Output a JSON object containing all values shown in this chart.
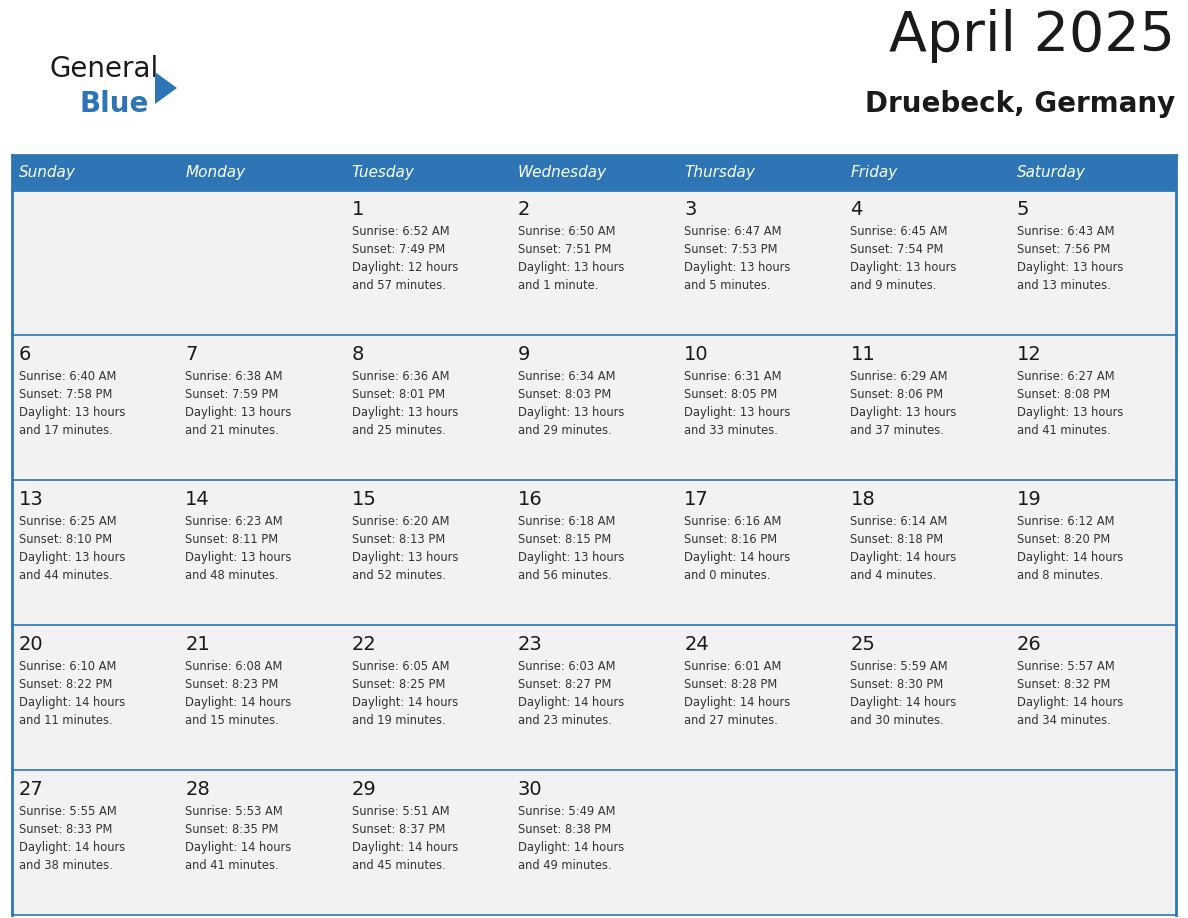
{
  "title": "April 2025",
  "subtitle": "Druebeck, Germany",
  "header_bg_color": "#2E75B6",
  "header_text_color": "#FFFFFF",
  "cell_bg_color": "#F2F2F2",
  "row_separator_color": "#2E75B6",
  "title_color": "#1a1a1a",
  "subtitle_color": "#1a1a1a",
  "text_color": "#333333",
  "days_of_week": [
    "Sunday",
    "Monday",
    "Tuesday",
    "Wednesday",
    "Thursday",
    "Friday",
    "Saturday"
  ],
  "weeks": [
    [
      {
        "day": null,
        "info": null
      },
      {
        "day": null,
        "info": null
      },
      {
        "day": 1,
        "info": "Sunrise: 6:52 AM\nSunset: 7:49 PM\nDaylight: 12 hours\nand 57 minutes."
      },
      {
        "day": 2,
        "info": "Sunrise: 6:50 AM\nSunset: 7:51 PM\nDaylight: 13 hours\nand 1 minute."
      },
      {
        "day": 3,
        "info": "Sunrise: 6:47 AM\nSunset: 7:53 PM\nDaylight: 13 hours\nand 5 minutes."
      },
      {
        "day": 4,
        "info": "Sunrise: 6:45 AM\nSunset: 7:54 PM\nDaylight: 13 hours\nand 9 minutes."
      },
      {
        "day": 5,
        "info": "Sunrise: 6:43 AM\nSunset: 7:56 PM\nDaylight: 13 hours\nand 13 minutes."
      }
    ],
    [
      {
        "day": 6,
        "info": "Sunrise: 6:40 AM\nSunset: 7:58 PM\nDaylight: 13 hours\nand 17 minutes."
      },
      {
        "day": 7,
        "info": "Sunrise: 6:38 AM\nSunset: 7:59 PM\nDaylight: 13 hours\nand 21 minutes."
      },
      {
        "day": 8,
        "info": "Sunrise: 6:36 AM\nSunset: 8:01 PM\nDaylight: 13 hours\nand 25 minutes."
      },
      {
        "day": 9,
        "info": "Sunrise: 6:34 AM\nSunset: 8:03 PM\nDaylight: 13 hours\nand 29 minutes."
      },
      {
        "day": 10,
        "info": "Sunrise: 6:31 AM\nSunset: 8:05 PM\nDaylight: 13 hours\nand 33 minutes."
      },
      {
        "day": 11,
        "info": "Sunrise: 6:29 AM\nSunset: 8:06 PM\nDaylight: 13 hours\nand 37 minutes."
      },
      {
        "day": 12,
        "info": "Sunrise: 6:27 AM\nSunset: 8:08 PM\nDaylight: 13 hours\nand 41 minutes."
      }
    ],
    [
      {
        "day": 13,
        "info": "Sunrise: 6:25 AM\nSunset: 8:10 PM\nDaylight: 13 hours\nand 44 minutes."
      },
      {
        "day": 14,
        "info": "Sunrise: 6:23 AM\nSunset: 8:11 PM\nDaylight: 13 hours\nand 48 minutes."
      },
      {
        "day": 15,
        "info": "Sunrise: 6:20 AM\nSunset: 8:13 PM\nDaylight: 13 hours\nand 52 minutes."
      },
      {
        "day": 16,
        "info": "Sunrise: 6:18 AM\nSunset: 8:15 PM\nDaylight: 13 hours\nand 56 minutes."
      },
      {
        "day": 17,
        "info": "Sunrise: 6:16 AM\nSunset: 8:16 PM\nDaylight: 14 hours\nand 0 minutes."
      },
      {
        "day": 18,
        "info": "Sunrise: 6:14 AM\nSunset: 8:18 PM\nDaylight: 14 hours\nand 4 minutes."
      },
      {
        "day": 19,
        "info": "Sunrise: 6:12 AM\nSunset: 8:20 PM\nDaylight: 14 hours\nand 8 minutes."
      }
    ],
    [
      {
        "day": 20,
        "info": "Sunrise: 6:10 AM\nSunset: 8:22 PM\nDaylight: 14 hours\nand 11 minutes."
      },
      {
        "day": 21,
        "info": "Sunrise: 6:08 AM\nSunset: 8:23 PM\nDaylight: 14 hours\nand 15 minutes."
      },
      {
        "day": 22,
        "info": "Sunrise: 6:05 AM\nSunset: 8:25 PM\nDaylight: 14 hours\nand 19 minutes."
      },
      {
        "day": 23,
        "info": "Sunrise: 6:03 AM\nSunset: 8:27 PM\nDaylight: 14 hours\nand 23 minutes."
      },
      {
        "day": 24,
        "info": "Sunrise: 6:01 AM\nSunset: 8:28 PM\nDaylight: 14 hours\nand 27 minutes."
      },
      {
        "day": 25,
        "info": "Sunrise: 5:59 AM\nSunset: 8:30 PM\nDaylight: 14 hours\nand 30 minutes."
      },
      {
        "day": 26,
        "info": "Sunrise: 5:57 AM\nSunset: 8:32 PM\nDaylight: 14 hours\nand 34 minutes."
      }
    ],
    [
      {
        "day": 27,
        "info": "Sunrise: 5:55 AM\nSunset: 8:33 PM\nDaylight: 14 hours\nand 38 minutes."
      },
      {
        "day": 28,
        "info": "Sunrise: 5:53 AM\nSunset: 8:35 PM\nDaylight: 14 hours\nand 41 minutes."
      },
      {
        "day": 29,
        "info": "Sunrise: 5:51 AM\nSunset: 8:37 PM\nDaylight: 14 hours\nand 45 minutes."
      },
      {
        "day": 30,
        "info": "Sunrise: 5:49 AM\nSunset: 8:38 PM\nDaylight: 14 hours\nand 49 minutes."
      },
      {
        "day": null,
        "info": null
      },
      {
        "day": null,
        "info": null
      },
      {
        "day": null,
        "info": null
      }
    ]
  ],
  "logo_general_color": "#1a1a1a",
  "logo_blue_color": "#2E75B6",
  "fig_width": 11.88,
  "fig_height": 9.18,
  "fig_dpi": 100
}
